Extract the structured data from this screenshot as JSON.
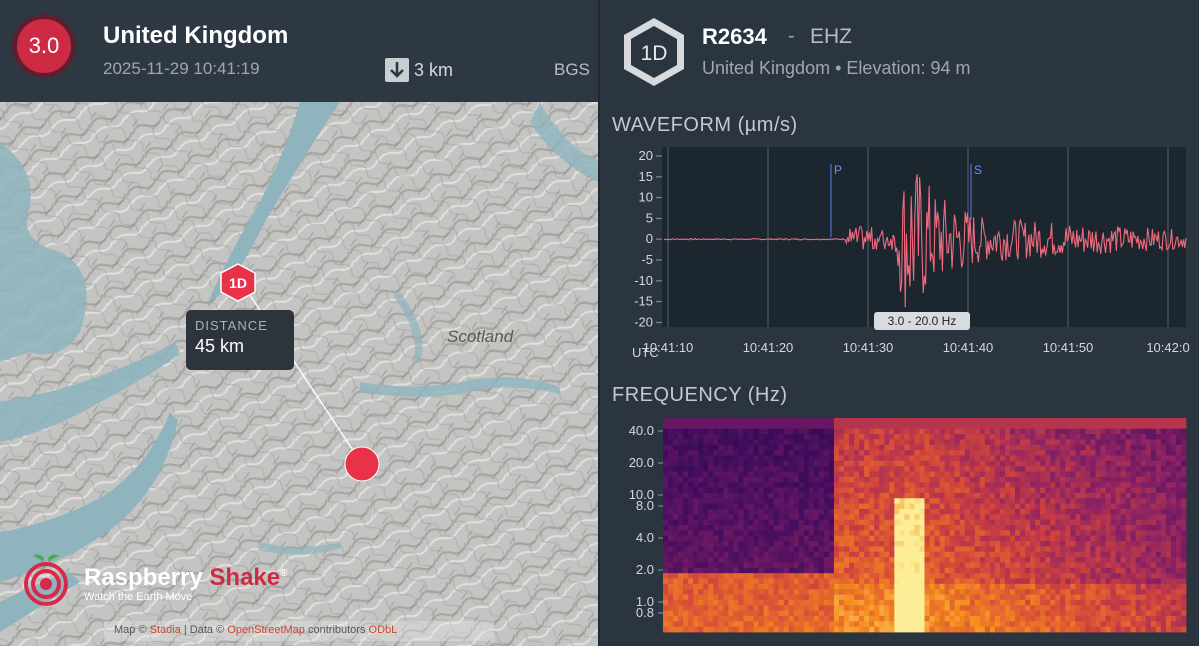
{
  "event": {
    "magnitude": "3.0",
    "region": "United Kingdom",
    "datetime": "2025-11-29 10:41:19",
    "depth": "3 km",
    "agency": "BGS",
    "depth_icon": "arrow-down-icon",
    "mag_color": "#cf2a44"
  },
  "map": {
    "region_label": "Scotland",
    "station_marker": "1D",
    "distance_title": "DISTANCE",
    "distance_value": "45 km",
    "logo_name_a": "Raspberry",
    "logo_name_b": "Shake",
    "logo_reg": "®",
    "logo_tagline": "Watch the Earth Move",
    "attribution_a": "Map ©",
    "attribution_link1": "Stadia",
    "attribution_b": "| Data ©",
    "attribution_link2": "OpenStreetMap",
    "attribution_c": "contributors",
    "attribution_link3": "ODbL",
    "colors": {
      "water": "#8fb4be",
      "marker": "#e8324a"
    }
  },
  "station": {
    "badge": "1D",
    "code": "R2634",
    "separator": "-",
    "channel": "EHZ",
    "location": "United Kingdom",
    "bullet": "•",
    "elevation": "Elevation: 94 m"
  },
  "waveform": {
    "title": "WAVEFORM (µm/s)",
    "utc_label": "UTC",
    "filter": "3.0 - 20.0 Hz",
    "p_label": "P",
    "s_label": "S",
    "y_ticks": [
      "20",
      "15",
      "10",
      "5",
      "0",
      "-5",
      "-10",
      "-15",
      "-20"
    ],
    "x_ticks": [
      "10:41:10",
      "10:41:20",
      "10:41:30",
      "10:41:40",
      "10:41:50",
      "10:42:0"
    ],
    "line_color": "#f06a7e"
  },
  "frequency": {
    "title": "FREQUENCY (Hz)",
    "y_ticks": [
      "40.0",
      "20.0",
      "10.0",
      "8.0",
      "4.0",
      "2.0",
      "1.0",
      "0.8"
    ]
  }
}
